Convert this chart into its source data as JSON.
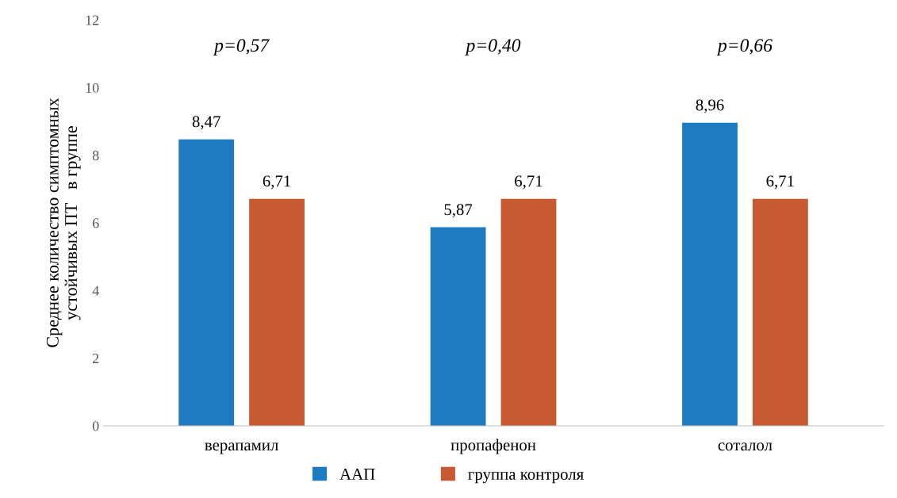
{
  "chart_data": {
    "type": "bar",
    "ylabel": "Среднее количество симптомных\nустойчивых ПТ   в группе",
    "categories": [
      "верапамил",
      "пропафенон",
      "соталол"
    ],
    "series": [
      {
        "name": "ААП",
        "color": "#1f7bc1",
        "values": [
          8.47,
          5.87,
          8.96
        ],
        "value_labels": [
          "8,47",
          "5,87",
          "8,96"
        ]
      },
      {
        "name": "группа контроля",
        "color": "#c85a32",
        "values": [
          6.71,
          6.71,
          6.71
        ],
        "value_labels": [
          "6,71",
          "6,71",
          "6,71"
        ]
      }
    ],
    "ylim": [
      0,
      12
    ],
    "yticks": [
      0,
      2,
      4,
      6,
      8,
      10,
      12
    ],
    "grid": false,
    "legend": "bottom",
    "annotations": [
      "p=0,57",
      "p=0,40",
      "p=0,66"
    ]
  }
}
